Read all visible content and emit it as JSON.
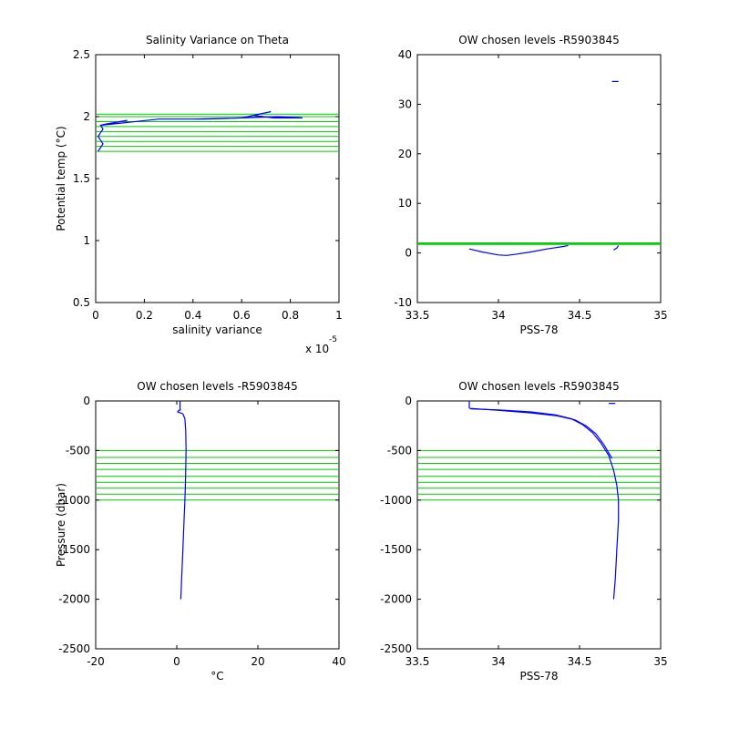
{
  "chart_data": [
    {
      "type": "line",
      "title": "Salinity Variance on Theta",
      "xlabel": "salinity variance",
      "ylabel": "Potential temp (°C)",
      "x_exponent_label": "x 10",
      "x_exponent": "-5",
      "xlim": [
        0,
        1
      ],
      "ylim": [
        0.5,
        2.5
      ],
      "xticks": [
        0,
        0.2,
        0.4,
        0.6,
        0.8,
        1
      ],
      "xtick_labels": [
        "0",
        "0.2",
        "0.4",
        "0.6",
        "0.8",
        "1"
      ],
      "yticks": [
        0.5,
        1,
        1.5,
        2,
        2.5
      ],
      "ytick_labels": [
        "0.5",
        "1",
        "1.5",
        "2",
        "2.5"
      ],
      "grid": false,
      "hlines": {
        "color": "#00cc00",
        "values": [
          1.72,
          1.76,
          1.8,
          1.84,
          1.88,
          1.92,
          1.96,
          2.0,
          2.02
        ]
      },
      "series": [
        {
          "color": "#0000ff",
          "x": [
            0.01,
            0.02,
            0.03,
            0.02,
            0.01,
            0.02,
            0.03,
            0.02,
            0.04,
            0.1,
            0.13,
            0.02,
            0.26,
            0.45,
            0.6,
            0.67,
            0.72,
            0.65,
            0.73,
            0.85,
            0.75,
            0.6,
            0.4,
            0.26
          ],
          "y": [
            1.72,
            1.75,
            1.78,
            1.81,
            1.84,
            1.87,
            1.9,
            1.93,
            1.94,
            1.96,
            1.97,
            1.93,
            1.98,
            1.98,
            1.99,
            2.02,
            2.04,
            2.01,
            1.99,
            1.99,
            2.0,
            1.99,
            1.98,
            1.98
          ]
        }
      ]
    },
    {
      "type": "line",
      "title": "OW chosen levels -R5903845",
      "xlabel": "PSS-78",
      "xlim": [
        33.5,
        35
      ],
      "ylim": [
        -10,
        40
      ],
      "xticks": [
        33.5,
        34,
        34.5,
        35
      ],
      "xtick_labels": [
        "33.5",
        "34",
        "34.5",
        "35"
      ],
      "yticks": [
        -10,
        0,
        10,
        20,
        30,
        40
      ],
      "ytick_labels": [
        "-10",
        "0",
        "10",
        "20",
        "30",
        "40"
      ],
      "grid": false,
      "hlines": {
        "color": "#00cc00",
        "values": [
          1.72,
          1.76,
          1.8,
          1.84,
          1.88,
          1.92,
          1.96,
          2.0,
          2.02
        ]
      },
      "series": [
        {
          "color": "#0000ff",
          "x": [
            33.82,
            33.9,
            34.0,
            34.05,
            34.1,
            34.2,
            34.3,
            34.4,
            34.43
          ],
          "y": [
            0.8,
            0.2,
            -0.4,
            -0.5,
            -0.3,
            0.2,
            0.8,
            1.3,
            1.5
          ]
        },
        {
          "color": "#0000ff",
          "x": [
            34.71,
            34.73,
            34.74
          ],
          "y": [
            0.6,
            1.0,
            1.5
          ]
        },
        {
          "color": "#0000ff",
          "x": [
            34.7,
            34.74
          ],
          "y": [
            34.6,
            34.6
          ]
        }
      ]
    },
    {
      "type": "line",
      "title": "OW chosen levels -R5903845",
      "xlabel": "°C",
      "ylabel": "Pressure (dbar)",
      "xlim": [
        -20,
        40
      ],
      "ylim": [
        -2500,
        0
      ],
      "xticks": [
        -20,
        0,
        20,
        40
      ],
      "xtick_labels": [
        "-20",
        "0",
        "20",
        "40"
      ],
      "yticks": [
        -2500,
        -2000,
        -1500,
        -1000,
        -500,
        0
      ],
      "ytick_labels": [
        "-2500",
        "-2000",
        "-1500",
        "-1000",
        "-500",
        "0"
      ],
      "grid": false,
      "hlines": {
        "color": "#00cc00",
        "values": [
          -500,
          -570,
          -630,
          -690,
          -760,
          -820,
          -880,
          -940,
          -1000
        ]
      },
      "series": [
        {
          "color": "#0000ff",
          "x": [
            0.8,
            0.8,
            0.9,
            0.5,
            0.2,
            1.5,
            2.0,
            2.2,
            2.3,
            2.2,
            2.1,
            2.0,
            1.8,
            1.5,
            1.2,
            1.0
          ],
          "y": [
            -5,
            -80,
            -90,
            -95,
            -110,
            -130,
            -180,
            -300,
            -500,
            -700,
            -900,
            -1000,
            -1200,
            -1500,
            -1800,
            -2000
          ]
        }
      ]
    },
    {
      "type": "line",
      "title": "OW chosen levels -R5903845",
      "xlabel": "PSS-78",
      "xlim": [
        33.5,
        35
      ],
      "ylim": [
        -2500,
        0
      ],
      "xticks": [
        33.5,
        34,
        34.5,
        35
      ],
      "xtick_labels": [
        "33.5",
        "34",
        "34.5",
        "35"
      ],
      "yticks": [
        -2500,
        -2000,
        -1500,
        -1000,
        -500,
        0
      ],
      "ytick_labels": [
        "-2500",
        "-2000",
        "-1500",
        "-1000",
        "-500",
        "0"
      ],
      "grid": false,
      "hlines": {
        "color": "#00cc00",
        "values": [
          -500,
          -570,
          -630,
          -690,
          -760,
          -820,
          -880,
          -940,
          -1000
        ]
      },
      "series": [
        {
          "color": "#0000ff",
          "x": [
            33.82,
            33.82,
            33.83,
            34.0,
            34.2,
            34.35,
            34.45,
            34.52,
            34.58,
            34.63,
            34.68,
            34.71,
            34.73,
            34.74,
            34.74,
            34.73,
            34.72,
            34.71
          ],
          "y": [
            0,
            -70,
            -80,
            -90,
            -110,
            -140,
            -180,
            -240,
            -320,
            -420,
            -550,
            -700,
            -850,
            -1000,
            -1200,
            -1500,
            -1800,
            -2000
          ]
        },
        {
          "color": "#0000ff",
          "x": [
            33.83,
            34.0,
            34.2,
            34.36,
            34.47,
            34.54,
            34.6,
            34.65,
            34.7
          ],
          "y": [
            -75,
            -95,
            -120,
            -150,
            -190,
            -250,
            -330,
            -440,
            -580
          ]
        },
        {
          "color": "#0000ff",
          "x": [
            34.68,
            34.72
          ],
          "y": [
            -25,
            -25
          ]
        }
      ]
    }
  ]
}
